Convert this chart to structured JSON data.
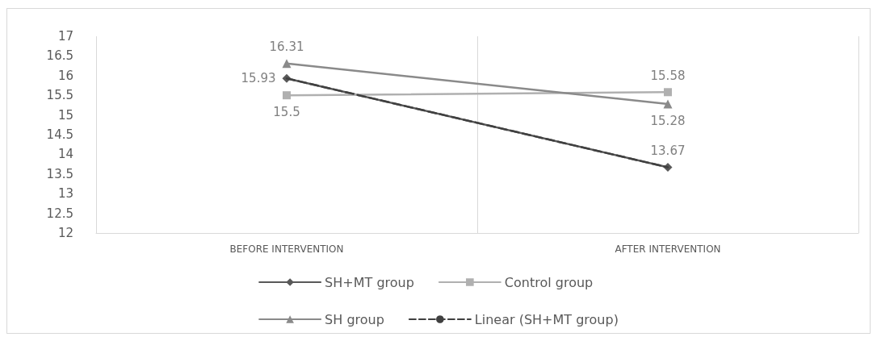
{
  "chart_data": {
    "type": "line",
    "categories": [
      "BEFORE INTERVENTION",
      "AFTER INTERVENTION"
    ],
    "series": [
      {
        "name": "SH+MT group",
        "color": "#595959",
        "values": [
          15.93,
          13.67
        ],
        "marker": "diamond",
        "value_labels": [
          "15.93",
          "13.67"
        ]
      },
      {
        "name": "Control group",
        "color": "#b0b0b0",
        "values": [
          15.5,
          15.58
        ],
        "marker": "square",
        "value_labels": [
          "15.5",
          "15.58"
        ]
      },
      {
        "name": "SH group",
        "color": "#8a8a8a",
        "values": [
          16.31,
          15.28
        ],
        "marker": "triangle",
        "value_labels": [
          "16.31",
          "15.28"
        ]
      },
      {
        "name": "Linear (SH+MT group)",
        "color": "#404040",
        "values": [
          15.93,
          13.67
        ],
        "marker": "none",
        "line_style": "dashed"
      }
    ],
    "ylim": [
      12,
      17
    ],
    "yticks": [
      12,
      12.5,
      13,
      13.5,
      14,
      14.5,
      15,
      15.5,
      16,
      16.5,
      17
    ],
    "grid": "x",
    "legend": "bottom"
  }
}
